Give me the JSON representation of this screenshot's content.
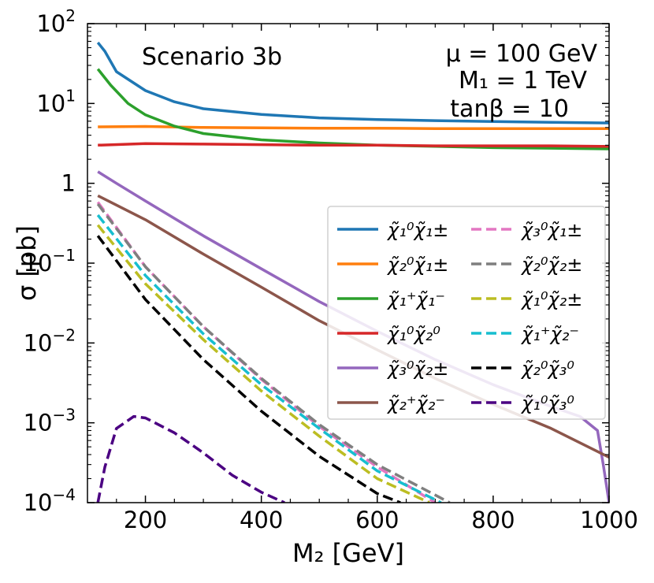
{
  "chart_data": {
    "type": "line",
    "title": "",
    "annotation_left": "Scenario 3b",
    "annotation_right": [
      "μ = 100 GeV",
      "M₁ = 1 TeV",
      "tanβ = 10"
    ],
    "xlabel": "M₂ [GeV]",
    "ylabel": "σ [pb]",
    "xlim": [
      100,
      1000
    ],
    "ylim": [
      0.0001,
      100
    ],
    "yscale": "log",
    "legend_position": "center-right",
    "x_ticks": [
      {
        "value": 200,
        "label": "200"
      },
      {
        "value": 400,
        "label": "400"
      },
      {
        "value": 600,
        "label": "600"
      },
      {
        "value": 800,
        "label": "800"
      },
      {
        "value": 1000,
        "label": "1000"
      }
    ],
    "y_ticks": [
      {
        "value": 0.0001,
        "base": "10",
        "exp": "−4"
      },
      {
        "value": 0.001,
        "base": "10",
        "exp": "−3"
      },
      {
        "value": 0.01,
        "base": "10",
        "exp": "−2"
      },
      {
        "value": 0.1,
        "base": "10",
        "exp": "−1"
      },
      {
        "value": 1,
        "base": "1",
        "exp": ""
      },
      {
        "value": 10,
        "base": "10",
        "exp": "1"
      },
      {
        "value": 100,
        "base": "10",
        "exp": "2"
      }
    ],
    "series": [
      {
        "name": "χ̃₁⁰χ̃₁±",
        "color": "#1f77b4",
        "dash": "solid",
        "x": [
          118,
          130,
          150,
          200,
          250,
          300,
          400,
          500,
          600,
          700,
          800,
          900,
          1000
        ],
        "y": [
          58,
          45,
          25,
          14.5,
          10.5,
          8.6,
          7.3,
          6.6,
          6.3,
          6.1,
          5.95,
          5.8,
          5.7
        ]
      },
      {
        "name": "χ̃₂⁰χ̃₁±",
        "color": "#ff7f0e",
        "dash": "solid",
        "x": [
          118,
          200,
          300,
          400,
          500,
          600,
          700,
          800,
          900,
          1000
        ],
        "y": [
          5.1,
          5.15,
          5.0,
          4.95,
          4.9,
          4.9,
          4.85,
          4.85,
          4.85,
          4.85
        ]
      },
      {
        "name": "χ̃₁⁺χ̃₁⁻",
        "color": "#2ca02c",
        "dash": "solid",
        "x": [
          118,
          140,
          170,
          200,
          250,
          300,
          400,
          500,
          600,
          700,
          800,
          900,
          1000
        ],
        "y": [
          27,
          17,
          10,
          7.2,
          5.2,
          4.2,
          3.5,
          3.2,
          3.0,
          2.9,
          2.8,
          2.75,
          2.7
        ]
      },
      {
        "name": "χ̃₁⁰χ̃₂⁰",
        "color": "#d62728",
        "dash": "solid",
        "x": [
          118,
          200,
          300,
          400,
          500,
          600,
          700,
          800,
          900,
          1000
        ],
        "y": [
          3.0,
          3.15,
          3.1,
          3.05,
          3.0,
          3.0,
          2.95,
          2.95,
          2.95,
          2.9
        ]
      },
      {
        "name": "χ̃₃⁰χ̃₂±",
        "color": "#9467bd",
        "dash": "solid",
        "x": [
          118,
          150,
          200,
          300,
          400,
          500,
          600,
          700,
          800,
          900,
          950,
          980,
          990,
          1000
        ],
        "y": [
          1.4,
          1.0,
          0.6,
          0.22,
          0.085,
          0.033,
          0.014,
          0.0062,
          0.003,
          0.0016,
          0.0012,
          0.0008,
          0.0003,
          0.0001
        ]
      },
      {
        "name": "χ̃₂⁺χ̃₂⁻",
        "color": "#8c564b",
        "dash": "solid",
        "x": [
          118,
          200,
          300,
          400,
          500,
          600,
          700,
          800,
          900,
          1000
        ],
        "y": [
          0.7,
          0.35,
          0.13,
          0.05,
          0.019,
          0.0082,
          0.0036,
          0.0017,
          0.00085,
          0.00037
        ]
      },
      {
        "name": "χ̃₃⁰χ̃₁±",
        "color": "#e377c2",
        "dash": "dashed",
        "x": [
          118,
          200,
          300,
          400,
          500,
          600,
          700
        ],
        "y": [
          0.58,
          0.09,
          0.016,
          0.0035,
          0.0009,
          0.00028,
          0.0001
        ]
      },
      {
        "name": "χ̃₂⁰χ̃₂±",
        "color": "#7f7f7f",
        "dash": "dashed",
        "x": [
          118,
          200,
          300,
          400,
          500,
          600,
          725
        ],
        "y": [
          0.55,
          0.09,
          0.016,
          0.0036,
          0.00095,
          0.0003,
          0.0001
        ]
      },
      {
        "name": "χ̃₁⁰χ̃₂±",
        "color": "#bcbd22",
        "dash": "dashed",
        "x": [
          118,
          200,
          300,
          400,
          500,
          600,
          690
        ],
        "y": [
          0.3,
          0.055,
          0.011,
          0.0025,
          0.00068,
          0.0002,
          0.0001
        ]
      },
      {
        "name": "χ̃₁⁺χ̃₂⁻",
        "color": "#17becf",
        "dash": "dashed",
        "x": [
          118,
          200,
          300,
          400,
          500,
          600,
          710
        ],
        "y": [
          0.4,
          0.07,
          0.013,
          0.003,
          0.00085,
          0.00025,
          0.0001
        ]
      },
      {
        "name": "χ̃₂⁰χ̃₃⁰",
        "color": "#000000",
        "dash": "dashed",
        "x": [
          118,
          200,
          300,
          400,
          500,
          600,
          640
        ],
        "y": [
          0.22,
          0.035,
          0.0062,
          0.0014,
          0.00038,
          0.00013,
          0.0001
        ]
      },
      {
        "name": "χ̃₁⁰χ̃₃⁰",
        "color": "#4b0082",
        "dash": "dashed",
        "x": [
          118,
          130,
          150,
          180,
          200,
          250,
          300,
          350,
          400,
          440
        ],
        "y": [
          0.0001,
          0.00028,
          0.00085,
          0.0012,
          0.00115,
          0.00075,
          0.00042,
          0.00022,
          0.000135,
          0.0001
        ]
      }
    ]
  }
}
